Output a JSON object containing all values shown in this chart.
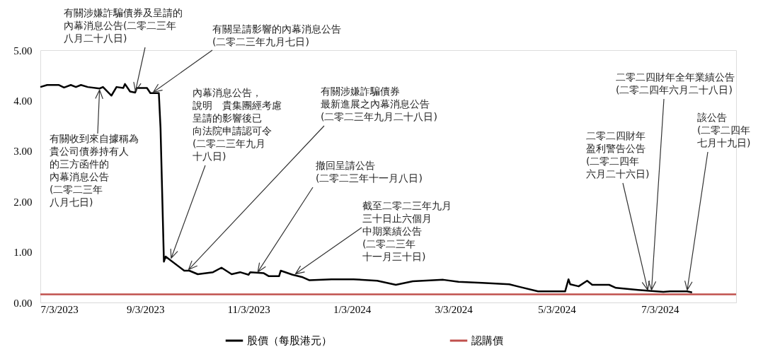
{
  "chart_data": {
    "type": "line",
    "xlim": [
      "2023-07-03",
      "2024-08-17"
    ],
    "xticks": [
      {
        "value": "2023-07-03",
        "label": "7/3/2023"
      },
      {
        "value": "2023-09-03",
        "label": "9/3/2023"
      },
      {
        "value": "2023-11-03",
        "label": "11/3/2023"
      },
      {
        "value": "2024-01-03",
        "label": "1/3/2024"
      },
      {
        "value": "2024-03-03",
        "label": "3/3/2024"
      },
      {
        "value": "2024-05-03",
        "label": "5/3/2024"
      },
      {
        "value": "2024-07-03",
        "label": "7/3/2024"
      }
    ],
    "ylim": [
      0,
      5
    ],
    "yticks": [
      {
        "value": 0,
        "label": "0.00"
      },
      {
        "value": 1,
        "label": "1.00"
      },
      {
        "value": 2,
        "label": "2.00"
      },
      {
        "value": 3,
        "label": "3.00"
      },
      {
        "value": 4,
        "label": "4.00"
      },
      {
        "value": 5,
        "label": "5.00"
      }
    ],
    "grid": false,
    "legend": "bottom",
    "marker": "none",
    "line_style": "solid",
    "series": [
      {
        "name": "股價（每股港元）",
        "color": "#000000",
        "x": [
          "2023-07-03",
          "2023-07-07",
          "2023-07-14",
          "2023-07-17",
          "2023-07-21",
          "2023-07-24",
          "2023-07-27",
          "2023-07-31",
          "2023-08-07",
          "2023-08-09",
          "2023-08-14",
          "2023-08-17",
          "2023-08-21",
          "2023-08-22",
          "2023-08-25",
          "2023-08-28",
          "2023-08-29",
          "2023-09-04",
          "2023-09-06",
          "2023-09-11",
          "2023-09-12",
          "2023-09-14",
          "2023-09-15",
          "2023-09-26",
          "2023-09-29",
          "2023-10-04",
          "2023-10-13",
          "2023-10-18",
          "2023-10-24",
          "2023-10-29",
          "2023-11-03",
          "2023-11-04",
          "2023-11-12",
          "2023-11-15",
          "2023-11-21",
          "2023-11-22",
          "2023-11-29",
          "2023-12-05",
          "2023-12-09",
          "2023-12-22",
          "2024-01-04",
          "2024-01-18",
          "2024-01-29",
          "2024-02-08",
          "2024-02-26",
          "2024-03-06",
          "2024-03-20",
          "2024-04-05",
          "2024-04-11",
          "2024-04-22",
          "2024-05-08",
          "2024-05-10",
          "2024-05-11",
          "2024-05-16",
          "2024-05-21",
          "2024-05-24",
          "2024-06-03",
          "2024-06-07",
          "2024-06-20",
          "2024-07-05",
          "2024-07-09",
          "2024-07-19",
          "2024-07-22"
        ],
        "values": [
          4.27,
          4.31,
          4.31,
          4.26,
          4.31,
          4.27,
          4.31,
          4.27,
          4.24,
          4.27,
          4.1,
          4.27,
          4.25,
          4.33,
          4.18,
          4.16,
          4.25,
          4.25,
          4.15,
          4.15,
          3.45,
          0.81,
          0.91,
          0.63,
          0.63,
          0.56,
          0.6,
          0.69,
          0.56,
          0.6,
          0.55,
          0.6,
          0.58,
          0.52,
          0.52,
          0.63,
          0.55,
          0.5,
          0.44,
          0.46,
          0.46,
          0.43,
          0.35,
          0.42,
          0.45,
          0.41,
          0.39,
          0.36,
          0.31,
          0.22,
          0.22,
          0.46,
          0.36,
          0.32,
          0.43,
          0.35,
          0.35,
          0.29,
          0.25,
          0.21,
          0.22,
          0.22,
          0.2
        ]
      },
      {
        "name": "認購價",
        "color": "#c0504d",
        "x": [
          "2023-07-03",
          "2024-08-17"
        ],
        "values": [
          0.16,
          0.16
        ]
      }
    ],
    "annotations": [
      {
        "text": "有關收到來自據稱為貴公司債券持有人的三方函件的內幕消息公告(二零二三年八月七日)",
        "x": "2023-08-07",
        "y": 4.24
      },
      {
        "text": "有關涉嫌詐騙債券及呈請的內幕消息公告(二零二三年八月二十八日)",
        "x": "2023-08-28",
        "y": 4.16
      },
      {
        "text": "有關呈請影響的內幕消息公告(二零二三年九月七日)",
        "x": "2023-09-07",
        "y": 4.15
      },
      {
        "text": "內幕消息公告，說明　貴集團經考慮呈請的影響後已向法院申請認可令(二零二三年九月十八日)",
        "x": "2023-09-18",
        "y": 0.85
      },
      {
        "text": "有關涉嫌詐騙債券最新進展之內幕消息公告(二零二三年九月二十八日)",
        "x": "2023-09-28",
        "y": 0.63
      },
      {
        "text": "撤回呈請公告(二零二三年十一月八日)",
        "x": "2023-11-08",
        "y": 0.58
      },
      {
        "text": "截至二零二三年九月三十日止六個月中期業績公告(二零二三年十一月三十日)",
        "x": "2023-11-30",
        "y": 0.55
      },
      {
        "text": "二零二四財年盈利警告公告(二零二四年六月二十六日)",
        "x": "2024-06-26",
        "y": 0.22
      },
      {
        "text": "二零二四財年全年業績公告(二零二四年六月二十八日)",
        "x": "2024-06-28",
        "y": 0.22
      },
      {
        "text": "該公告(二零二四年七月十九日)",
        "x": "2024-07-19",
        "y": 0.22
      }
    ]
  }
}
